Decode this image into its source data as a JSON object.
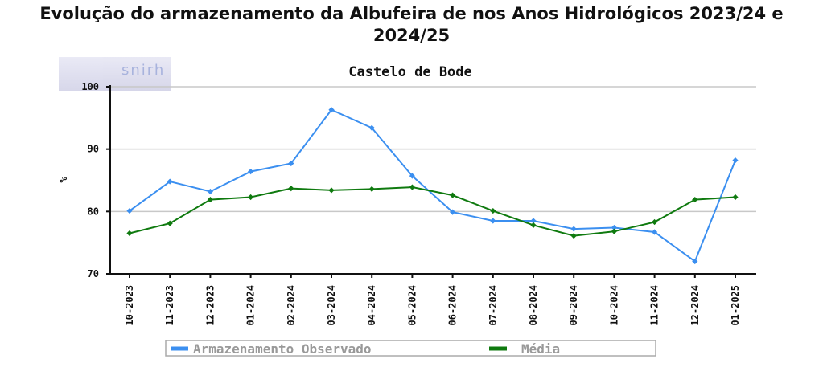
{
  "page": {
    "title": "Evolução do armazenamento da Albufeira de nos Anos Hidrológicos 2023/24 e 2024/25"
  },
  "logo": {
    "text": "snirh"
  },
  "chart_data": {
    "type": "line",
    "title": "Castelo de Bode",
    "xlabel": "",
    "ylabel": "%",
    "categories": [
      "10-2023",
      "11-2023",
      "12-2023",
      "01-2024",
      "02-2024",
      "03-2024",
      "04-2024",
      "05-2024",
      "06-2024",
      "07-2024",
      "08-2024",
      "09-2024",
      "10-2024",
      "11-2024",
      "12-2024",
      "01-2025"
    ],
    "ylim": [
      70,
      100
    ],
    "yticks": [
      70,
      80,
      90,
      100
    ],
    "grid": true,
    "legend": "bottom",
    "series": [
      {
        "name": "Armazenamento Observado",
        "color": "#3b8ff0",
        "values": [
          80.1,
          84.8,
          83.2,
          86.4,
          87.7,
          96.3,
          93.4,
          85.7,
          79.9,
          78.5,
          78.5,
          77.2,
          77.4,
          76.7,
          72.0,
          88.2
        ]
      },
      {
        "name": "Média",
        "color": "#0f7a0f",
        "values": [
          76.5,
          78.1,
          81.9,
          82.3,
          83.7,
          83.4,
          83.6,
          83.9,
          82.6,
          80.1,
          77.8,
          76.1,
          76.8,
          78.3,
          81.9,
          82.3
        ]
      }
    ]
  }
}
